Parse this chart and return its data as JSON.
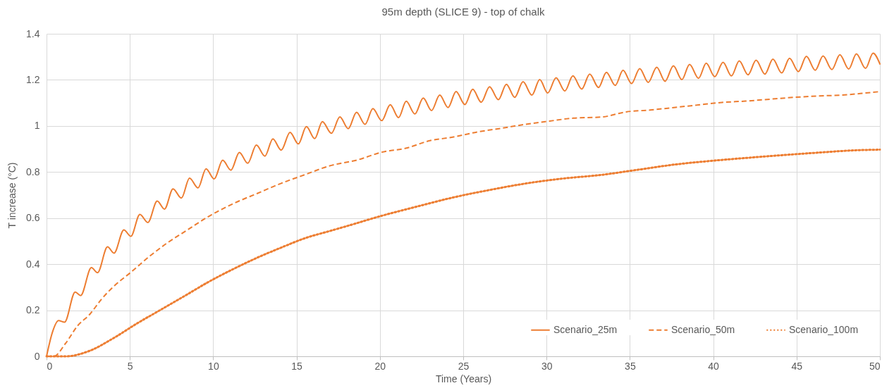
{
  "chart_data": {
    "type": "line",
    "title": "95m depth (SLICE 9) - top of chalk",
    "xlabel": "Time (Years)",
    "ylabel": "T increase (°C)",
    "xlim": [
      0,
      50
    ],
    "xticks": [
      0,
      5,
      10,
      15,
      20,
      25,
      30,
      35,
      40,
      45,
      50
    ],
    "ylim": [
      0,
      1.4
    ],
    "yticks": [
      0,
      0.2,
      0.4,
      0.6,
      0.8,
      1,
      1.2,
      1.4
    ],
    "grid": true,
    "legend": "bottom right",
    "series": [
      {
        "name": "Scenario_25m",
        "color": "#ed7d31",
        "line_style": "solid",
        "x": [
          0,
          0.36,
          0.72,
          1.08,
          1.72,
          2.05,
          2.69,
          3.06,
          3.66,
          4.05,
          4.64,
          5.06,
          5.6,
          6.08,
          6.64,
          7.08,
          7.59,
          8.09,
          8.58,
          9.09,
          9.57,
          10.06,
          10.57,
          11.06,
          11.57,
          12.07,
          12.59,
          13.1,
          13.58,
          14.08,
          14.61,
          15.11,
          15.59,
          16.09,
          16.55,
          17.09,
          17.6,
          18.1,
          18.6,
          19.11,
          19.58,
          20.11,
          20.62,
          21.12,
          21.58,
          22.1,
          22.6,
          23.1,
          23.59,
          24.09,
          24.57,
          25.1,
          25.57,
          26.08,
          26.58,
          27.11,
          27.59,
          28.09,
          28.59,
          29.12,
          29.59,
          30.07,
          30.57,
          31.1,
          31.58,
          32.11,
          32.59,
          33.12,
          33.59,
          34.12,
          34.59,
          35.1,
          35.59,
          36.1,
          36.61,
          37.11,
          37.61,
          38.12,
          38.58,
          39.12,
          39.58,
          40.09,
          40.59,
          41.09,
          41.56,
          42.09,
          42.57,
          43.1,
          43.58,
          44.11,
          44.58,
          45.11,
          45.59,
          46.12,
          46.59,
          47.12,
          47.6,
          48.13,
          48.59,
          49.14,
          49.59,
          50
        ],
        "values": [
          0,
          0.106,
          0.155,
          0.148,
          0.279,
          0.264,
          0.385,
          0.363,
          0.475,
          0.448,
          0.549,
          0.521,
          0.616,
          0.581,
          0.674,
          0.639,
          0.727,
          0.687,
          0.773,
          0.731,
          0.814,
          0.77,
          0.851,
          0.808,
          0.885,
          0.838,
          0.917,
          0.869,
          0.944,
          0.895,
          0.972,
          0.922,
          0.997,
          0.945,
          1.019,
          0.968,
          1.039,
          0.988,
          1.059,
          1.007,
          1.075,
          1.023,
          1.092,
          1.036,
          1.107,
          1.052,
          1.121,
          1.067,
          1.134,
          1.08,
          1.149,
          1.093,
          1.159,
          1.103,
          1.17,
          1.114,
          1.181,
          1.124,
          1.192,
          1.134,
          1.201,
          1.143,
          1.209,
          1.152,
          1.217,
          1.16,
          1.225,
          1.167,
          1.233,
          1.176,
          1.242,
          1.184,
          1.249,
          1.189,
          1.255,
          1.194,
          1.261,
          1.201,
          1.267,
          1.207,
          1.272,
          1.214,
          1.276,
          1.217,
          1.282,
          1.222,
          1.285,
          1.225,
          1.29,
          1.23,
          1.294,
          1.236,
          1.302,
          1.242,
          1.304,
          1.245,
          1.309,
          1.247,
          1.313,
          1.25,
          1.316,
          1.269
        ]
      },
      {
        "name": "Scenario_50m",
        "color": "#ed7d31",
        "line_style": "dashed",
        "x": [
          0,
          0.43,
          1.15,
          1.87,
          2.59,
          3.3,
          4.02,
          5.03,
          6.18,
          7.18,
          8.33,
          9.77,
          11.21,
          12.64,
          14.08,
          15.52,
          16.95,
          18.68,
          20.11,
          21.55,
          22.99,
          24.42,
          25.86,
          27.3,
          28.73,
          30.17,
          31.61,
          33.33,
          34.77,
          36.21,
          37.64,
          39.08,
          40.52,
          41.95,
          43.39,
          44.83,
          46.26,
          47.7,
          49.14,
          50
        ],
        "values": [
          0,
          0,
          0.057,
          0.133,
          0.182,
          0.248,
          0.303,
          0.363,
          0.434,
          0.489,
          0.543,
          0.609,
          0.663,
          0.707,
          0.751,
          0.789,
          0.826,
          0.853,
          0.886,
          0.903,
          0.936,
          0.952,
          0.974,
          0.99,
          1.007,
          1.021,
          1.034,
          1.039,
          1.061,
          1.069,
          1.08,
          1.091,
          1.102,
          1.108,
          1.116,
          1.124,
          1.13,
          1.134,
          1.143,
          1.149
        ]
      },
      {
        "name": "Scenario_100m",
        "color": "#ed7d31",
        "line_style": "dotted",
        "x": [
          0,
          1.15,
          2.59,
          4.02,
          5.46,
          6.9,
          8.33,
          9.77,
          11.21,
          12.64,
          14.08,
          15.52,
          16.95,
          17.96,
          20.11,
          22.27,
          24.42,
          26.58,
          28.73,
          30.89,
          33.33,
          35.49,
          37.64,
          39.8,
          41.95,
          44.11,
          46.26,
          48.42,
          50
        ],
        "values": [
          0,
          0,
          0.024,
          0.079,
          0.144,
          0.204,
          0.264,
          0.325,
          0.379,
          0.428,
          0.472,
          0.513,
          0.543,
          0.564,
          0.61,
          0.651,
          0.69,
          0.722,
          0.75,
          0.771,
          0.788,
          0.81,
          0.832,
          0.848,
          0.861,
          0.873,
          0.884,
          0.894,
          0.897
        ]
      }
    ]
  }
}
